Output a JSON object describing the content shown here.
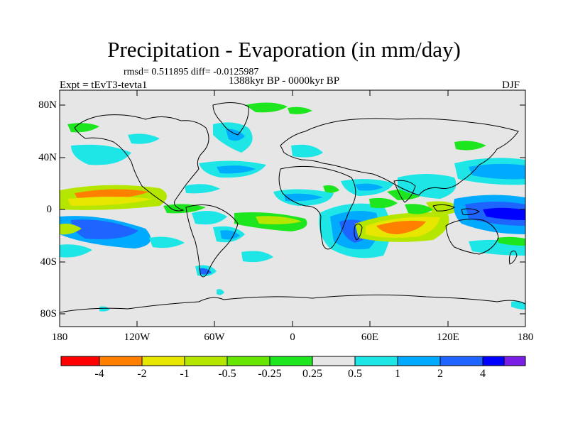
{
  "header": {
    "title": "Precipitation - Evaporation (in mm/day)",
    "stats": "rmsd= 0.511895 diff= -0.0125987",
    "experiment": "Expt = tEvT3-tevta1",
    "period": "1388kyr BP - 0000kyr BP",
    "season": "DJF"
  },
  "axes": {
    "y_ticks": [
      "80N",
      "40N",
      "0",
      "40S",
      "80S"
    ],
    "x_ticks": [
      "180",
      "120W",
      "60W",
      "0",
      "60E",
      "120E",
      "180"
    ]
  },
  "colorbar": {
    "colors": [
      "#ff0000",
      "#ff8000",
      "#e6e600",
      "#b4e600",
      "#66e600",
      "#1ee61e",
      "#e6e6e6",
      "#1ee6e6",
      "#00aaff",
      "#1e64ff",
      "#0000ff",
      "#1414c8",
      "#7a1ee6"
    ],
    "labels": [
      "-4",
      "-2",
      "-1",
      "-0.5",
      "-0.25",
      "0.25",
      "0.5",
      "1",
      "2",
      "4"
    ]
  },
  "map": {
    "ocean_color": "#e6e6e6",
    "lon_range": [
      -180,
      180
    ],
    "lat_range": [
      -90,
      90
    ]
  }
}
